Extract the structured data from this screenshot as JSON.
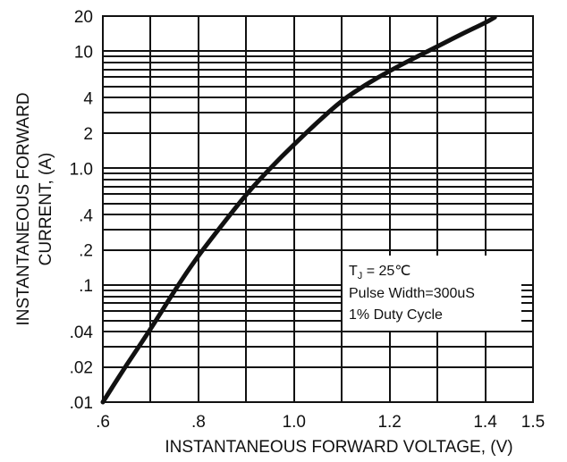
{
  "chart_data": {
    "type": "line",
    "title": "",
    "xlabel": "INSTANTANEOUS FORWARD VOLTAGE, (V)",
    "ylabel_lines": [
      "INSTANTANEOUS FORWARD",
      "CURRENT, (A)"
    ],
    "xlim": [
      0.6,
      1.5
    ],
    "ylim": [
      0.01,
      20
    ],
    "yscale": "log",
    "grid": true,
    "x_ticks": [
      {
        "value": 0.6,
        "label": ".6"
      },
      {
        "value": 0.8,
        "label": ".8"
      },
      {
        "value": 1.0,
        "label": "1.0"
      },
      {
        "value": 1.2,
        "label": "1.2"
      },
      {
        "value": 1.4,
        "label": "1.4"
      },
      {
        "value": 1.5,
        "label": "1.5"
      }
    ],
    "y_ticks": [
      {
        "value": 0.01,
        "label": ".01"
      },
      {
        "value": 0.02,
        "label": ".02"
      },
      {
        "value": 0.04,
        "label": ".04"
      },
      {
        "value": 0.1,
        "label": ".1"
      },
      {
        "value": 0.2,
        "label": ".2"
      },
      {
        "value": 0.4,
        "label": ".4"
      },
      {
        "value": 1.0,
        "label": "1.0"
      },
      {
        "value": 2,
        "label": "2"
      },
      {
        "value": 4,
        "label": "4"
      },
      {
        "value": 10,
        "label": "10"
      },
      {
        "value": 20,
        "label": "20"
      }
    ],
    "x_grid": [
      0.6,
      0.7,
      0.8,
      0.9,
      1.0,
      1.1,
      1.2,
      1.3,
      1.4,
      1.5
    ],
    "y_grid": [
      0.01,
      0.02,
      0.03,
      0.04,
      0.05,
      0.06,
      0.07,
      0.08,
      0.09,
      0.1,
      0.2,
      0.3,
      0.4,
      0.5,
      0.6,
      0.7,
      0.8,
      0.9,
      1.0,
      2,
      3,
      4,
      5,
      6,
      7,
      8,
      9,
      10,
      20
    ],
    "series": [
      {
        "x": [
          0.6,
          0.65,
          0.7,
          0.75,
          0.8,
          0.85,
          0.9,
          0.95,
          1.0,
          1.05,
          1.1,
          1.15,
          1.2,
          1.25,
          1.3,
          1.35,
          1.4,
          1.42
        ],
        "y": [
          0.01,
          0.021,
          0.042,
          0.09,
          0.18,
          0.33,
          0.6,
          1.0,
          1.6,
          2.5,
          3.8,
          5.2,
          6.8,
          8.7,
          11,
          14,
          17.5,
          19.5
        ]
      }
    ],
    "annotation": {
      "line1_prefix": "T",
      "line1_subscript": "J",
      "line1_suffix": " = 25℃",
      "line2": "Pulse Width=300uS",
      "line3": "1% Duty Cycle"
    },
    "colors": {
      "ink": "#111111",
      "background": "#ffffff"
    }
  }
}
